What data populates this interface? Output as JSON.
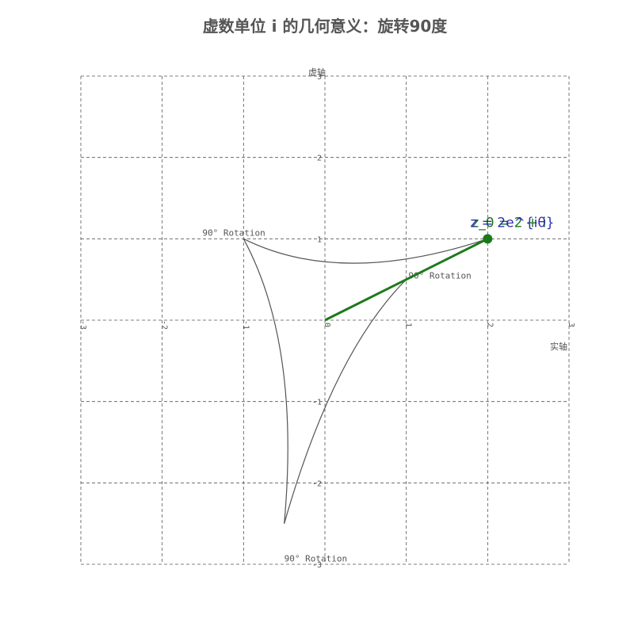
{
  "chart_data": {
    "type": "scatter",
    "title": "虚数单位 i 的几何意义：旋转90度",
    "xlabel": "实轴",
    "ylabel": "虚轴",
    "xlim": [
      -3,
      3
    ],
    "ylim": [
      -3,
      3
    ],
    "grid": true,
    "x_ticks": [
      "-3",
      "-2",
      "-1",
      "0",
      "1",
      "2",
      "3"
    ],
    "y_ticks": [
      "-3",
      "-2",
      "-1",
      "0",
      "1",
      "2",
      "3"
    ],
    "colors": {
      "vector": "#1a7a1a",
      "label_z0": "#1a7a1a",
      "label_z": "#1a1aa8",
      "grid": "#555555",
      "arc": "#555555"
    },
    "point": {
      "x": 2,
      "y": 1
    },
    "point_labels": [
      {
        "text": "z_0 = 2 + i",
        "role": "z0"
      },
      {
        "text": "z = 2e^{iθ}",
        "role": "z"
      }
    ],
    "rotations": [
      {
        "label": "90° Rotation",
        "from": [
          2,
          1
        ],
        "to": [
          -1,
          1
        ]
      },
      {
        "label": "90° Rotation",
        "from": [
          -1,
          1
        ],
        "to": [
          -0.5,
          -2.5
        ]
      },
      {
        "label": "90° Rotation",
        "from": [
          -0.5,
          -2.5
        ],
        "to": [
          1,
          0.5
        ]
      }
    ]
  }
}
